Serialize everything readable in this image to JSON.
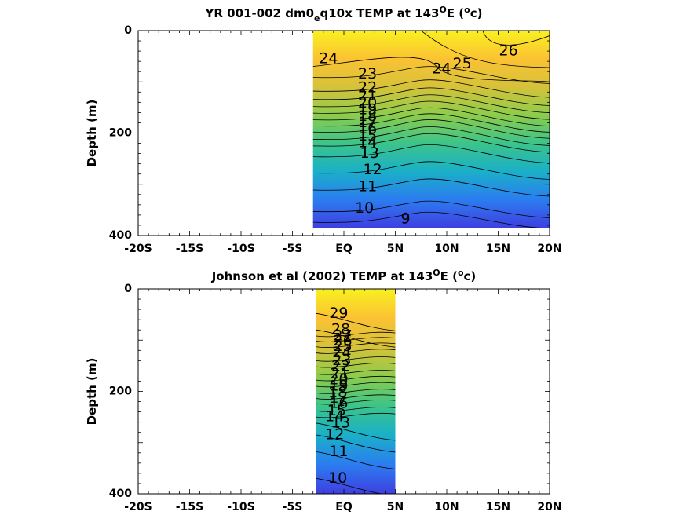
{
  "chart_data": [
    {
      "type": "contour",
      "title": "YR 001-002 dm0_eq10x TEMP at 143°E (°c)",
      "title_parts": [
        "YR 001-002 dm0",
        "e",
        "q10x TEMP at 143",
        "O",
        "E (",
        "o",
        "c)"
      ],
      "xlabel": "",
      "ylabel": "Depth (m)",
      "xlim": [
        -20,
        20
      ],
      "ylim": [
        400,
        0
      ],
      "x_ticks": [
        "-20S",
        "-15S",
        "-10S",
        "-5S",
        "EQ",
        "5N",
        "10N",
        "15N",
        "20N"
      ],
      "y_ticks": [
        "0",
        "200",
        "400"
      ],
      "data_extent": {
        "lat": [
          -3,
          20
        ],
        "depth": [
          0,
          385
        ]
      },
      "colormap": [
        "#3f3fe0",
        "#2b7df0",
        "#1ab0c8",
        "#3cc48a",
        "#8ccc4c",
        "#d6c23a",
        "#fbc233",
        "#f9f020"
      ],
      "contour_labels": [
        {
          "text": "24",
          "lat": -1.5,
          "depth": 55
        },
        {
          "text": "26",
          "lat": 16,
          "depth": 40
        },
        {
          "text": "25",
          "lat": 11.5,
          "depth": 65
        },
        {
          "text": "24",
          "lat": 9.5,
          "depth": 75
        },
        {
          "text": "23",
          "lat": 2.3,
          "depth": 85
        },
        {
          "text": "22",
          "lat": 2.3,
          "depth": 112
        },
        {
          "text": "21",
          "lat": 2.3,
          "depth": 128
        },
        {
          "text": "20",
          "lat": 2.3,
          "depth": 142
        },
        {
          "text": "19",
          "lat": 2.3,
          "depth": 155
        },
        {
          "text": "18",
          "lat": 2.3,
          "depth": 168
        },
        {
          "text": "17",
          "lat": 2.3,
          "depth": 180
        },
        {
          "text": "16",
          "lat": 2.3,
          "depth": 192
        },
        {
          "text": "15",
          "lat": 2.3,
          "depth": 206
        },
        {
          "text": "14",
          "lat": 2.3,
          "depth": 219
        },
        {
          "text": "13",
          "lat": 2.5,
          "depth": 240
        },
        {
          "text": "12",
          "lat": 2.8,
          "depth": 272
        },
        {
          "text": "11",
          "lat": 2.3,
          "depth": 305
        },
        {
          "text": "10",
          "lat": 2.0,
          "depth": 347
        },
        {
          "text": "9",
          "lat": 6.0,
          "depth": 368
        }
      ]
    },
    {
      "type": "contour",
      "title": "Johnson et al (2002) TEMP at 143°E (°c)",
      "title_parts": [
        "Johnson et al (2002) TEMP at 143",
        "O",
        "E (",
        "o",
        "c)"
      ],
      "xlabel": "",
      "ylabel": "Depth (m)",
      "xlim": [
        -20,
        20
      ],
      "ylim": [
        400,
        0
      ],
      "x_ticks": [
        "-20S",
        "-15S",
        "-10S",
        "-5S",
        "EQ",
        "5N",
        "10N",
        "15N",
        "20N"
      ],
      "y_ticks": [
        "0",
        "200",
        "400"
      ],
      "data_extent": {
        "lat": [
          -2.7,
          5
        ],
        "depth": [
          0,
          400
        ]
      },
      "colormap": [
        "#3f3fe0",
        "#2b7df0",
        "#1ab0c8",
        "#3cc48a",
        "#8ccc4c",
        "#d6c23a",
        "#fbc233",
        "#f9f020"
      ],
      "contour_labels": [
        {
          "text": "29",
          "lat": -0.5,
          "depth": 48
        },
        {
          "text": "28",
          "lat": -0.3,
          "depth": 80
        },
        {
          "text": "27",
          "lat": -0.1,
          "depth": 92
        },
        {
          "text": "26",
          "lat": -0.1,
          "depth": 102
        },
        {
          "text": "25",
          "lat": -0.1,
          "depth": 113
        },
        {
          "text": "24",
          "lat": -0.2,
          "depth": 125
        },
        {
          "text": "23",
          "lat": -0.2,
          "depth": 140
        },
        {
          "text": "22",
          "lat": -0.3,
          "depth": 152
        },
        {
          "text": "21",
          "lat": -0.4,
          "depth": 166
        },
        {
          "text": "20",
          "lat": -0.5,
          "depth": 178
        },
        {
          "text": "19",
          "lat": -0.5,
          "depth": 190
        },
        {
          "text": "18",
          "lat": -0.6,
          "depth": 203
        },
        {
          "text": "17",
          "lat": -0.5,
          "depth": 214
        },
        {
          "text": "16",
          "lat": -0.5,
          "depth": 224
        },
        {
          "text": "15",
          "lat": -0.7,
          "depth": 238
        },
        {
          "text": "14",
          "lat": -0.9,
          "depth": 250
        },
        {
          "text": "13",
          "lat": -0.3,
          "depth": 262
        },
        {
          "text": "12",
          "lat": -0.9,
          "depth": 285
        },
        {
          "text": "11",
          "lat": -0.5,
          "depth": 318
        },
        {
          "text": "10",
          "lat": -0.6,
          "depth": 370
        }
      ]
    }
  ]
}
